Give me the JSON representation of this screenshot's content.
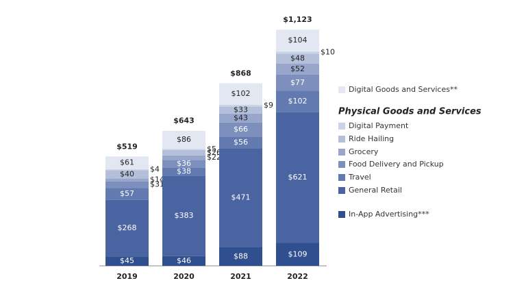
{
  "chart_data": {
    "type": "stacked_bar",
    "categories": [
      "2019",
      "2020",
      "2021",
      "2022"
    ],
    "series": [
      {
        "name": "In-App Advertising***",
        "color": "#2f4f8f",
        "values": [
          45,
          46,
          88,
          109
        ],
        "value_labels": [
          "$45",
          "$46",
          "$88",
          "$109"
        ]
      },
      {
        "name": "General Retail",
        "color": "#4a64a2",
        "values": [
          268,
          383,
          471,
          621
        ],
        "value_labels": [
          "$268",
          "$383",
          "$471",
          "$621"
        ]
      },
      {
        "name": "Travel",
        "color": "#627aaf",
        "values": [
          57,
          38,
          56,
          102
        ],
        "value_labels": [
          "$57",
          "$38",
          "$56",
          "$102"
        ]
      },
      {
        "name": "Food Delivery and Pickup",
        "color": "#7c8fbd",
        "values": [
          31,
          36,
          66,
          77
        ],
        "value_labels": [
          "$31",
          "$36",
          "$66",
          "$77"
        ]
      },
      {
        "name": "Grocery",
        "color": "#98a6cb",
        "values": [
          14,
          22,
          43,
          52
        ],
        "value_labels": [
          "$14",
          "$22",
          "$43",
          "$52"
        ]
      },
      {
        "name": "Ride Hailing",
        "color": "#b4bfd9",
        "values": [
          40,
          26,
          33,
          48
        ],
        "value_labels": [
          "$40",
          "$26",
          "$33",
          "$48"
        ]
      },
      {
        "name": "Digital Payment",
        "color": "#cbd3e6",
        "values": [
          4,
          5,
          9,
          10
        ],
        "value_labels": [
          "$4",
          "$5",
          "$9",
          "$10"
        ]
      },
      {
        "name": "Digital Goods and Services**",
        "color": "#e2e7f1",
        "values": [
          61,
          86,
          102,
          104
        ],
        "value_labels": [
          "$61",
          "$86",
          "$102",
          "$104"
        ]
      }
    ],
    "totals": [
      519,
      643,
      868,
      1123
    ],
    "total_labels": [
      "$519",
      "$643",
      "$868",
      "$1,123"
    ],
    "legend_group_title": "Physical Goods and Services"
  }
}
